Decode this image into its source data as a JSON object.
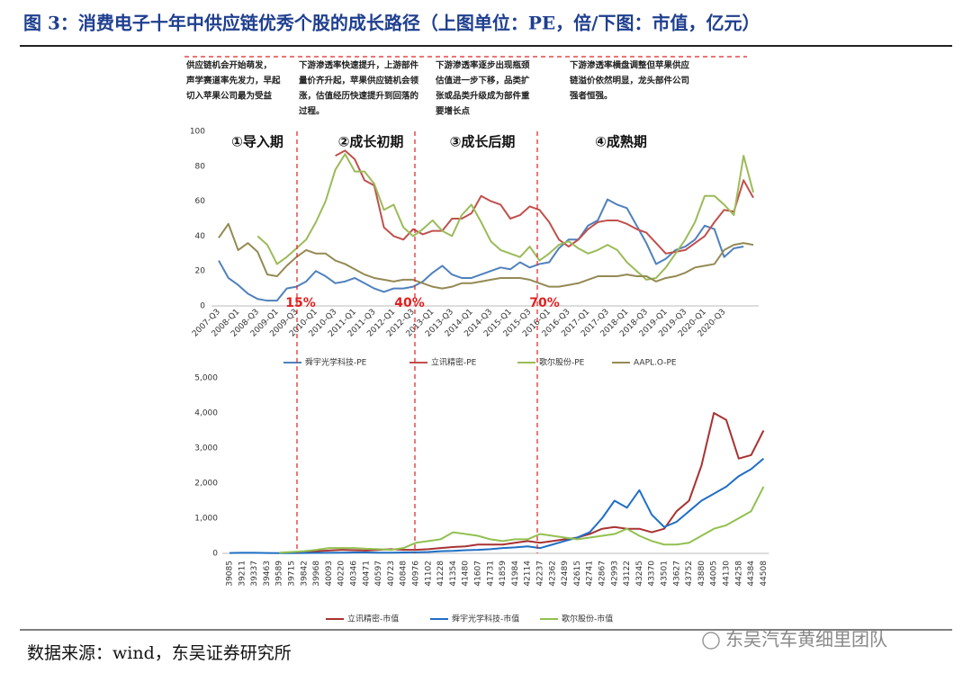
{
  "header": {
    "title": "图 3：消费电子十年中供应链优秀个股的成长路径（上图单位：PE，倍/下图：市值，亿元）"
  },
  "chart_data": [
    {
      "type": "line",
      "categories": [
        "2007-Q3",
        null,
        "2008-Q1",
        null,
        "2008-Q3",
        null,
        "2009-Q1",
        null,
        "2009-Q3",
        null,
        "2010-Q1",
        null,
        "2010-Q3",
        null,
        "2011-Q1",
        null,
        "2011-Q3",
        null,
        "2012-Q1",
        null,
        "2012-Q3",
        null,
        "2013-Q1",
        null,
        "2013-Q3",
        null,
        "2014-Q1",
        null,
        "2014-Q3",
        null,
        "2015-Q1",
        null,
        "2015-Q3",
        null,
        "2016-Q1",
        null,
        "2016-Q3",
        null,
        "2017-Q1",
        null,
        "2017-Q3",
        null,
        "2018-Q1",
        null,
        "2018-Q3",
        null,
        "2019-Q1",
        null,
        "2019-Q3",
        null,
        "2020-Q1",
        null,
        "2020-Q3",
        null,
        null,
        null
      ],
      "series": [
        {
          "name": "舜宇光学科技-PE",
          "color": "#4f81bd",
          "values": [
            26,
            16,
            12,
            7,
            4,
            3,
            3,
            10,
            11,
            14,
            20,
            17,
            13,
            14,
            16,
            13,
            10,
            8,
            10,
            10,
            11,
            14,
            19,
            23,
            18,
            16,
            16,
            18,
            20,
            22,
            21,
            25,
            22,
            24,
            25,
            33,
            38,
            38,
            46,
            49,
            61,
            58,
            56,
            46,
            36,
            24,
            27,
            32,
            34,
            38,
            46,
            44,
            28,
            33,
            34,
            null
          ]
        },
        {
          "name": "立讯精密-PE",
          "color": "#c0504d",
          "values": [
            null,
            null,
            null,
            null,
            null,
            null,
            null,
            null,
            null,
            null,
            null,
            null,
            86,
            89,
            84,
            72,
            69,
            45,
            40,
            38,
            44,
            41,
            43,
            43,
            50,
            50,
            53,
            63,
            60,
            58,
            50,
            52,
            57,
            55,
            48,
            38,
            34,
            38,
            44,
            48,
            49,
            49,
            47,
            44,
            42,
            36,
            30,
            31,
            32,
            36,
            40,
            48,
            55,
            54,
            72,
            62
          ]
        },
        {
          "name": "歌尔股份-PE",
          "color": "#9bbb59",
          "values": [
            null,
            null,
            null,
            null,
            40,
            35,
            24,
            28,
            33,
            38,
            48,
            60,
            78,
            87,
            77,
            77,
            70,
            55,
            58,
            45,
            40,
            44,
            49,
            43,
            40,
            52,
            58,
            48,
            37,
            32,
            30,
            28,
            34,
            26,
            30,
            35,
            37,
            33,
            30,
            32,
            35,
            32,
            25,
            20,
            15,
            16,
            22,
            30,
            38,
            48,
            63,
            63,
            58,
            52,
            86,
            65
          ]
        },
        {
          "name": "AAPL.O-PE",
          "color": "#948a54",
          "values": [
            39,
            47,
            32,
            36,
            31,
            18,
            17,
            23,
            28,
            32,
            30,
            30,
            26,
            24,
            21,
            18,
            16,
            15,
            14,
            15,
            15,
            13,
            11,
            10,
            11,
            13,
            13,
            14,
            15,
            16,
            16,
            16,
            15,
            13,
            11,
            11,
            12,
            13,
            15,
            17,
            17,
            17,
            18,
            17,
            17,
            14,
            16,
            17,
            19,
            22,
            23,
            24,
            32,
            35,
            36,
            35
          ]
        }
      ],
      "ylim": [
        0,
        100
      ],
      "yticks": [
        0,
        20,
        40,
        60,
        80,
        100
      ],
      "grid": false,
      "annotations": [
        {
          "lines": [
            "供应链机会开始萌发，",
            "声学赛道率先发力，早起",
            "切入苹果公司最为受益"
          ]
        },
        {
          "lines": [
            "下游渗透率快速提升，上游部件",
            "量价齐升起，苹果供应链机会领",
            "涨，估值经历快速提升到回落的",
            "过程。"
          ]
        },
        {
          "lines": [
            "下游渗透率逐步出现瓶颈",
            "估值进一步下移，品类扩",
            "张或品类升级成为部件重",
            "要增长点"
          ]
        },
        {
          "lines": [
            "下游渗透率横盘调整但苹果供应",
            "链溢价依然明显，龙头部件公司",
            "强者恒强。"
          ]
        }
      ],
      "phases": [
        "①导入期",
        "②成长初期",
        "③成长后期",
        "④成熟期"
      ],
      "milestones": [
        "15%",
        "40%",
        "70%"
      ]
    },
    {
      "type": "line",
      "categories": [
        "39085",
        "39211",
        "39337",
        "39463",
        "39589",
        "39715",
        "39842",
        "39968",
        "40093",
        "40220",
        "40346",
        "40471",
        "40597",
        "40723",
        "40848",
        "40976",
        "41102",
        "41228",
        "41354",
        "41480",
        "41607",
        "41731",
        "41859",
        "41984",
        "42114",
        "42237",
        "42362",
        "42489",
        "42615",
        "42741",
        "42867",
        "42993",
        "43122",
        "43245",
        "43370",
        "43501",
        "43627",
        "43752",
        "43880",
        "44005",
        "44130",
        "44258",
        "44384",
        "44508"
      ],
      "series": [
        {
          "name": "立讯精密-市值",
          "color": "#a83232",
          "values": [
            null,
            null,
            null,
            null,
            null,
            20,
            40,
            60,
            80,
            100,
            90,
            80,
            100,
            120,
            100,
            100,
            120,
            150,
            180,
            200,
            250,
            250,
            250,
            300,
            350,
            300,
            350,
            400,
            450,
            550,
            700,
            750,
            700,
            700,
            600,
            700,
            1200,
            1500,
            2500,
            4000,
            3800,
            2700,
            2800,
            3500
          ]
        },
        {
          "name": "舜宇光学科技-市值",
          "color": "#1f6fc5",
          "values": [
            10,
            15,
            15,
            10,
            8,
            8,
            10,
            12,
            15,
            20,
            25,
            25,
            20,
            20,
            25,
            30,
            40,
            60,
            70,
            90,
            100,
            120,
            150,
            170,
            200,
            150,
            250,
            350,
            450,
            600,
            1000,
            1500,
            1300,
            1800,
            1100,
            750,
            900,
            1200,
            1500,
            1700,
            1900,
            2200,
            2400,
            2700
          ]
        },
        {
          "name": "歌尔股份-市值",
          "color": "#92c050",
          "values": [
            null,
            null,
            null,
            null,
            20,
            40,
            60,
            100,
            150,
            150,
            150,
            130,
            120,
            100,
            150,
            300,
            350,
            400,
            600,
            550,
            500,
            400,
            350,
            400,
            400,
            550,
            500,
            450,
            400,
            450,
            500,
            550,
            700,
            500,
            350,
            250,
            250,
            300,
            500,
            700,
            800,
            1000,
            1200,
            1900
          ]
        }
      ],
      "ylim": [
        0,
        5000
      ],
      "yticks": [
        0,
        {
          "value": 1000,
          "label": "1,000"
        },
        {
          "value": 2000,
          "label": "2,000"
        },
        {
          "value": 3000,
          "label": "3,000"
        },
        {
          "value": 4000,
          "label": "4,000"
        },
        {
          "value": 5000,
          "label": "5,000"
        }
      ],
      "grid": false
    }
  ],
  "footer": {
    "source": "数据来源：wind，东吴证券研究所",
    "watermark": "东吴汽车黄细里团队"
  }
}
